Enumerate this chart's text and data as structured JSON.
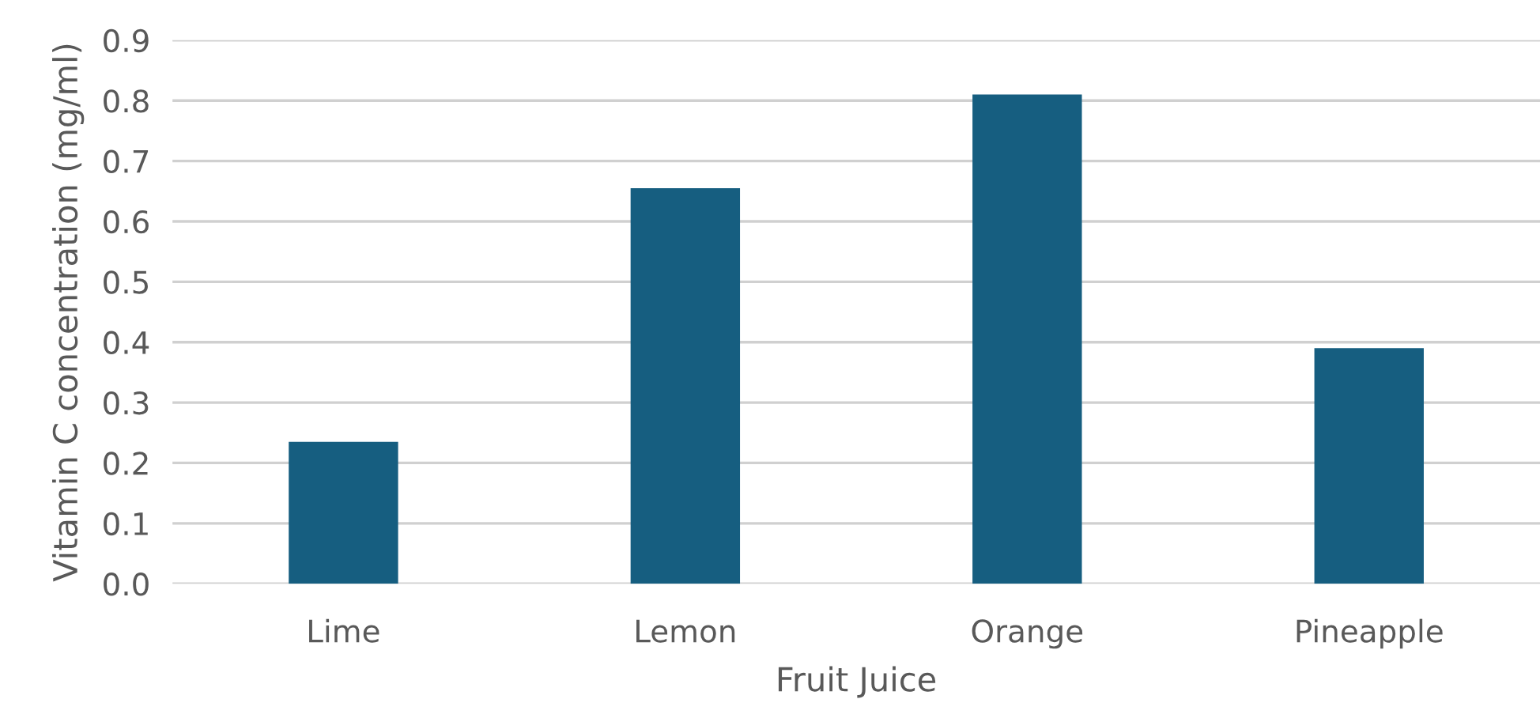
{
  "chart_data": {
    "type": "bar",
    "xlabel": "Fruit Juice",
    "ylabel": "Vitamin C concentration (mg/ml)",
    "categories": [
      "Lime",
      "Lemon",
      "Orange",
      "Pineapple"
    ],
    "values": [
      0.235,
      0.655,
      0.81,
      0.39
    ],
    "color": "#165e80",
    "ylim": [
      0,
      0.9
    ],
    "yticks": [
      {
        "value": 0,
        "label": "0.0"
      },
      0.1,
      0.2,
      0.3,
      0.4,
      0.5,
      0.6,
      0.7,
      0.8,
      0.9
    ],
    "grid": "y"
  }
}
